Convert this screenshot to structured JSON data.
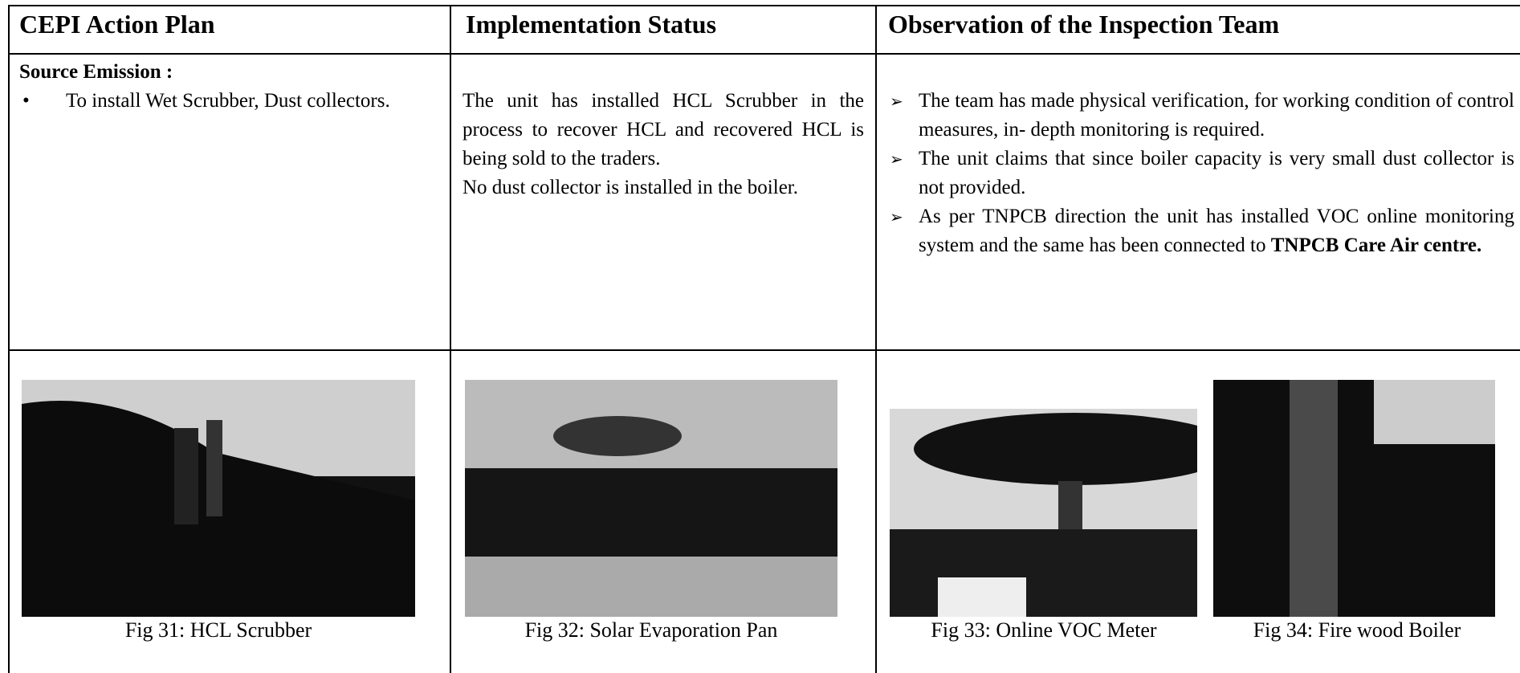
{
  "table": {
    "headers": [
      "CEPI Action Plan",
      "Implementation Status",
      "Observation of the Inspection Team"
    ],
    "row": {
      "action_plan": {
        "heading": "Source Emission :",
        "items": [
          "To install Wet Scrubber, Dust collectors."
        ]
      },
      "status": [
        "The unit has installed HCL Scrubber in the process to recover HCL and recovered HCL is being sold to the traders.",
        "No dust collector is installed in the boiler."
      ],
      "observations": [
        "The team has made physical verification, for working condition of control measures, in- depth monitoring is required.",
        "The unit claims that since boiler capacity is very small dust collector is not provided.",
        {
          "text": "As per TNPCB direction the unit has installed VOC online monitoring system and the same has been connected to",
          "emphasis": "TNPCB Care Air centre."
        }
      ]
    },
    "figures": [
      "Fig 31: HCL Scrubber",
      "Fig 32: Solar Evaporation Pan",
      "Fig 33: Online VOC Meter",
      "Fig 34: Fire wood Boiler"
    ]
  }
}
